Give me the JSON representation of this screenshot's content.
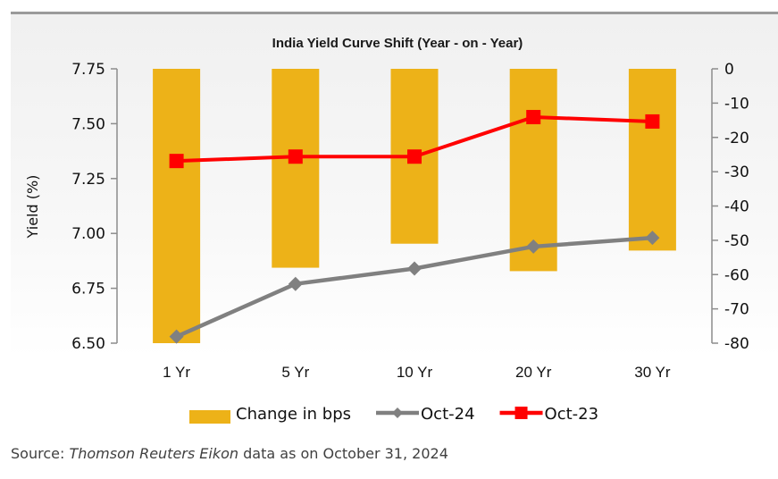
{
  "chart_data": {
    "type": "bar+line",
    "title": "India Yield Curve Shift (Year - on - Year)",
    "categories": [
      "1 Yr",
      "5 Yr",
      "10 Yr",
      "20 Yr",
      "30 Yr"
    ],
    "ylabel": "Yield (%)",
    "ylim": [
      6.5,
      7.75
    ],
    "yticks": [
      "7.75",
      "7.50",
      "7.25",
      "7.00",
      "6.75",
      "6.50"
    ],
    "ytick_values": [
      7.75,
      7.5,
      7.25,
      7.0,
      6.75,
      6.5
    ],
    "y2lim": [
      -80,
      0
    ],
    "y2ticks": [
      "0",
      "-10",
      "-20",
      "-30",
      "-40",
      "-50",
      "-60",
      "-70",
      "-80"
    ],
    "y2tick_values": [
      0,
      -10,
      -20,
      -30,
      -40,
      -50,
      -60,
      -70,
      -80
    ],
    "grid": false,
    "legend_position": "bottom",
    "series": [
      {
        "name": "Change in bps",
        "type": "bar",
        "axis": "right",
        "color": "#EDB218",
        "values": [
          -80,
          -58,
          -51,
          -59,
          -53
        ]
      },
      {
        "name": "Oct-24",
        "type": "line",
        "axis": "left",
        "marker": "diamond",
        "color": "#808080",
        "values": [
          6.53,
          6.77,
          6.84,
          6.94,
          6.98
        ]
      },
      {
        "name": "Oct-23",
        "type": "line",
        "axis": "left",
        "marker": "square",
        "color": "#FF0000",
        "values": [
          7.33,
          7.35,
          7.35,
          7.53,
          7.51
        ]
      }
    ]
  },
  "source": {
    "prefix": "Source: ",
    "italic": "Thomson Reuters Eikon",
    "suffix": " data as on October 31, 2024"
  }
}
